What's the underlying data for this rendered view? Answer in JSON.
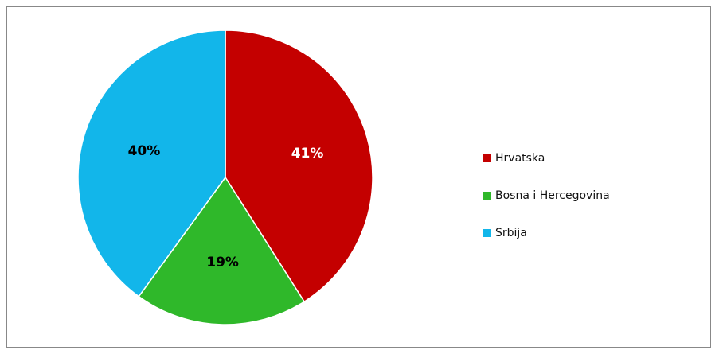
{
  "chart_data": {
    "type": "pie",
    "categories": [
      "Hrvatska",
      "Bosna i Hercegovina",
      "Srbija"
    ],
    "values": [
      41,
      19,
      40
    ],
    "value_labels": [
      "41%",
      "19%",
      "40%"
    ],
    "colors": [
      "#c40000",
      "#2fb82a",
      "#12b6ea"
    ],
    "label_colors": [
      "#ffffff",
      "#000000",
      "#000000"
    ],
    "legend": "right"
  }
}
